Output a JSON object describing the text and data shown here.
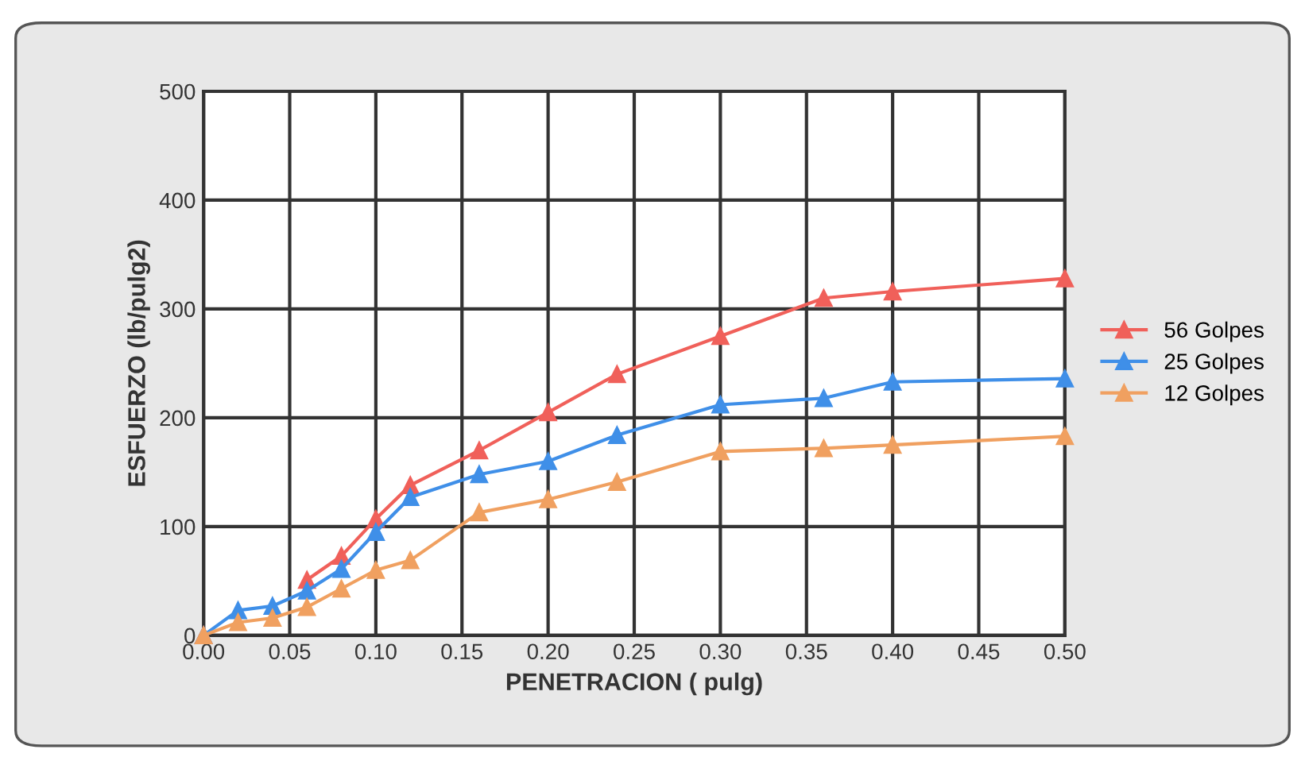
{
  "chart_data": {
    "type": "line",
    "xlabel": "PENETRACION ( pulg)",
    "ylabel": "ESFUERZO (lb/pulg2)",
    "x": [
      0,
      0.02,
      0.04,
      0.06,
      0.08,
      0.1,
      0.12,
      0.16,
      0.2,
      0.24,
      0.3,
      0.36,
      0.4,
      0.5
    ],
    "series": [
      {
        "name": "56 Golpes",
        "color": "#f0605a",
        "values": [
          0,
          null,
          null,
          51,
          73,
          107,
          138,
          170,
          205,
          240,
          275,
          310,
          316,
          328
        ]
      },
      {
        "name": "25 Golpes",
        "color": "#3f8fe8",
        "values": [
          0,
          23,
          27,
          41,
          61,
          95,
          127,
          148,
          160,
          184,
          212,
          218,
          233,
          236
        ]
      },
      {
        "name": "12 Golpes",
        "color": "#f0a060",
        "values": [
          0,
          12,
          16,
          26,
          43,
          60,
          69,
          113,
          125,
          141,
          169,
          172,
          175,
          183
        ]
      }
    ],
    "xlim": [
      0,
      0.5
    ],
    "xticks": [
      {
        "value": 0,
        "label": "0.00"
      },
      {
        "value": 0.05,
        "label": "0.05"
      },
      {
        "value": 0.1,
        "label": "0.10"
      },
      {
        "value": 0.15,
        "label": "0.15"
      },
      {
        "value": 0.2,
        "label": "0.20"
      },
      {
        "value": 0.25,
        "label": "0.25"
      },
      {
        "value": 0.3,
        "label": "0.30"
      },
      {
        "value": 0.35,
        "label": "0.35"
      },
      {
        "value": 0.4,
        "label": "0.40"
      },
      {
        "value": 0.45,
        "label": "0.45"
      },
      {
        "value": 0.5,
        "label": "0.50"
      }
    ],
    "ylim": [
      0,
      500
    ],
    "yticks": [
      0,
      100,
      200,
      300,
      400,
      500
    ],
    "grid": true,
    "legend": "right",
    "marker": "triangle",
    "line_style": "solid"
  }
}
